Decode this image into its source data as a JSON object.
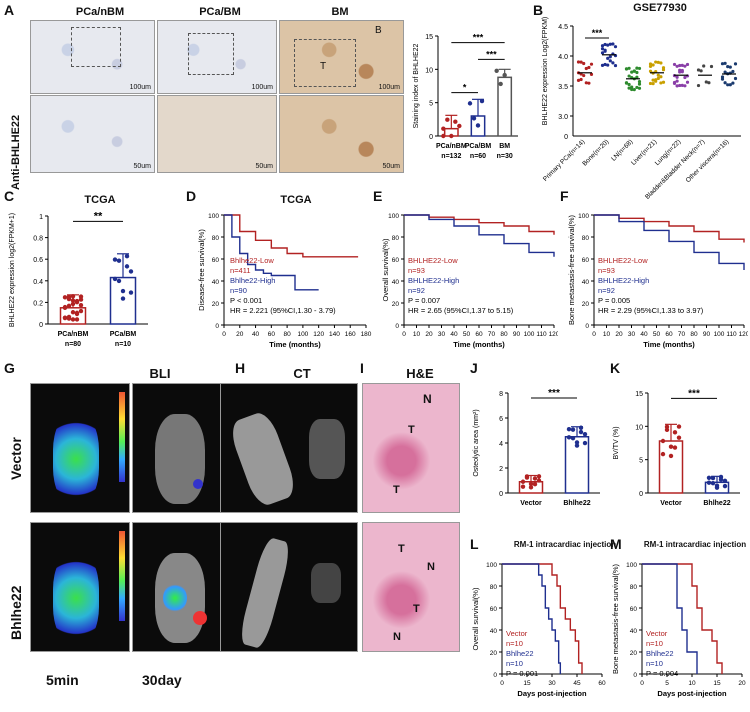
{
  "panels": {
    "A": {
      "label": "A",
      "side_label": "Anti-BHLHE22",
      "titles": [
        "PCa/nBM",
        "PCa/BM",
        "BM"
      ],
      "scale": [
        "100um",
        "100um",
        "100um"
      ],
      "scale_bottom": [
        "50um",
        "50um",
        "50um"
      ],
      "marks": {
        "T": "T",
        "B": "B"
      }
    },
    "B": {
      "label": "B",
      "title": "GSE77930"
    },
    "C": {
      "label": "C",
      "title": "TCGA"
    },
    "D": {
      "label": "D",
      "title": "TCGA",
      "legend_low": "Bhlhe22-Low",
      "n_low": "n=411",
      "legend_high": "Bhlhe22-High",
      "n_high": "n=90",
      "p": "P < 0.001",
      "hr": "HR = 2.221 (95%CI,1.30 - 3.79)"
    },
    "E": {
      "label": "E",
      "legend_low": "BHLHE22-Low",
      "n_low": "n=93",
      "legend_high": "BHLHE22-High",
      "n_high": "n=92",
      "p": "P = 0.007",
      "hr": "HR = 2.65 (95%CI,1.37 to 5.15)"
    },
    "F": {
      "label": "F",
      "legend_low": "BHLHE22-Low",
      "n_low": "n=93",
      "legend_high": "BHLHE22-High",
      "n_high": "n=92",
      "p": "P = 0.005",
      "hr": "HR = 2.29 (95%CI,1.33 to 3.97)"
    },
    "G": {
      "label": "G",
      "title": "BLI",
      "row1": "Vector",
      "row2": "Bhlhe22",
      "t1": "5min",
      "t2": "30day"
    },
    "H": {
      "label": "H",
      "title": "CT"
    },
    "I": {
      "label": "I",
      "title": "H&E",
      "n": "N",
      "t": "T"
    },
    "J": {
      "label": "J"
    },
    "K": {
      "label": "K"
    },
    "L": {
      "label": "L",
      "title": "RM-1 intracardiac injection",
      "v": "Vector",
      "vn": "n=10",
      "b": "Bhlhe22",
      "bn": "n=10",
      "p": "P = 0.001"
    },
    "M": {
      "label": "M",
      "title": "RM-1 intracardiac injection",
      "v": "Vector",
      "vn": "n=10",
      "b": "Bhlhe22",
      "bn": "n=10",
      "p": "P = 0.004"
    }
  },
  "colors": {
    "red": "#b22222",
    "blue": "#1f2f8f",
    "green": "#2e8b2e",
    "pink": "#d94f8a"
  },
  "chart_data": [
    {
      "id": "A-bar",
      "type": "bar",
      "ylabel": "Staining index of BHLHE22",
      "categories": [
        "PCa/nBM",
        "PCa/BM",
        "BM"
      ],
      "counts": [
        "n=132",
        "n=60",
        "n=30"
      ],
      "values": [
        1.1,
        3.0,
        8.8
      ],
      "errors": [
        2.0,
        2.5,
        1.2
      ],
      "ylim": [
        0,
        15
      ],
      "yticks": [
        0,
        5,
        10,
        15
      ],
      "significance": [
        "*",
        "***",
        "***"
      ]
    },
    {
      "id": "B-scatter",
      "type": "scatter",
      "ylabel": "BHLHE22 expression Log2(FPKM)",
      "categories": [
        "Primary PCa(n=14)",
        "Bone(n=20)",
        "LN(n=68)",
        "Liver(n=21)",
        "Lung(n=22)",
        "Bladder&Bladder Neck(n=7)",
        "Other viscera(n=16)"
      ],
      "means": [
        3.72,
        4.02,
        3.62,
        3.72,
        3.68,
        3.68,
        3.7
      ],
      "yticks": [
        0,
        3.0,
        3.5,
        4.0,
        4.5
      ],
      "significance": "***"
    },
    {
      "id": "C-bar",
      "type": "bar",
      "ylabel": "BHLHE22 expression log2(FPKM+1)",
      "categories": [
        "PCa/nBM",
        "PCa/BM"
      ],
      "counts": [
        "n=80",
        "n=10"
      ],
      "values": [
        0.15,
        0.43
      ],
      "errors": [
        0.12,
        0.22
      ],
      "ylim": [
        0,
        1.0
      ],
      "yticks": [
        0.0,
        0.2,
        0.4,
        0.6,
        0.8,
        1.0
      ],
      "significance": "**"
    },
    {
      "id": "D-km",
      "type": "line",
      "ylabel": "Disease-free survival(%)",
      "xlabel": "Time (months)",
      "xticks": [
        0,
        20,
        40,
        60,
        80,
        100,
        120,
        140,
        160,
        180
      ],
      "yticks": [
        0,
        20,
        40,
        60,
        80,
        100
      ],
      "series": [
        {
          "name": "Bhlhe22-Low",
          "x": [
            0,
            20,
            40,
            60,
            80,
            100,
            120,
            140,
            160,
            170
          ],
          "y": [
            100,
            85,
            77,
            70,
            65,
            62,
            62,
            62,
            62,
            62
          ]
        },
        {
          "name": "Bhlhe22-High",
          "x": [
            0,
            10,
            20,
            30,
            40,
            50,
            60,
            70,
            80,
            90,
            120
          ],
          "y": [
            100,
            80,
            65,
            55,
            50,
            47,
            45,
            45,
            45,
            32,
            32
          ]
        }
      ]
    },
    {
      "id": "E-km",
      "type": "line",
      "ylabel": "Overall survival(%)",
      "xlabel": "Time (months)",
      "xticks": [
        0,
        10,
        20,
        30,
        40,
        50,
        60,
        70,
        80,
        90,
        100,
        110,
        120
      ],
      "yticks": [
        0,
        20,
        40,
        60,
        80,
        100
      ],
      "series": [
        {
          "name": "BHLHE22-Low",
          "x": [
            0,
            20,
            40,
            60,
            80,
            100,
            120
          ],
          "y": [
            100,
            98,
            96,
            93,
            90,
            85,
            82
          ]
        },
        {
          "name": "BHLHE22-High",
          "x": [
            0,
            20,
            40,
            60,
            80,
            100,
            120
          ],
          "y": [
            100,
            96,
            90,
            82,
            74,
            66,
            62
          ]
        }
      ]
    },
    {
      "id": "F-km",
      "type": "line",
      "ylabel": "Bone metastasis-free survival(%)",
      "xlabel": "Time (months)",
      "xticks": [
        0,
        10,
        20,
        30,
        40,
        50,
        60,
        70,
        80,
        90,
        100,
        110,
        120
      ],
      "yticks": [
        0,
        20,
        40,
        60,
        80,
        100
      ],
      "series": [
        {
          "name": "BHLHE22-Low",
          "x": [
            0,
            20,
            40,
            60,
            80,
            100,
            120
          ],
          "y": [
            100,
            97,
            94,
            90,
            85,
            78,
            75
          ]
        },
        {
          "name": "BHLHE22-High",
          "x": [
            0,
            20,
            40,
            60,
            80,
            100,
            120
          ],
          "y": [
            100,
            94,
            86,
            76,
            66,
            56,
            50
          ]
        }
      ]
    },
    {
      "id": "J-bar",
      "type": "bar",
      "ylabel": "Osteolytic area (mm²)",
      "categories": [
        "Vector",
        "Bhlhe22"
      ],
      "values": [
        0.9,
        4.5
      ],
      "errors": [
        0.5,
        0.8
      ],
      "ylim": [
        0,
        8
      ],
      "yticks": [
        0,
        2,
        4,
        6,
        8
      ],
      "significance": "***"
    },
    {
      "id": "K-bar",
      "type": "bar",
      "ylabel": "BV/TV (%)",
      "categories": [
        "Vector",
        "Bhlhe22"
      ],
      "values": [
        7.8,
        1.6
      ],
      "errors": [
        2.5,
        0.9
      ],
      "ylim": [
        0,
        15
      ],
      "yticks": [
        0,
        5,
        10,
        15
      ],
      "significance": "***"
    },
    {
      "id": "L-km",
      "type": "line",
      "ylabel": "Overall survival(%)",
      "xlabel": "Days post-injection",
      "xticks": [
        0,
        15,
        30,
        45,
        60
      ],
      "yticks": [
        0,
        20,
        40,
        60,
        80,
        100
      ],
      "series": [
        {
          "name": "Vector",
          "x": [
            0,
            28,
            30,
            33,
            35,
            38,
            41,
            44,
            46,
            48
          ],
          "y": [
            100,
            100,
            90,
            80,
            60,
            50,
            40,
            30,
            10,
            0
          ]
        },
        {
          "name": "Bhlhe22",
          "x": [
            0,
            20,
            22,
            24,
            26,
            28,
            30,
            32,
            34,
            35
          ],
          "y": [
            100,
            100,
            90,
            80,
            60,
            50,
            40,
            30,
            10,
            0
          ]
        }
      ]
    },
    {
      "id": "M-km",
      "type": "line",
      "ylabel": "Bone metastasis-free survival(%)",
      "xlabel": "Days post-injection",
      "xticks": [
        0,
        5,
        10,
        15,
        20
      ],
      "yticks": [
        0,
        20,
        40,
        60,
        80,
        100
      ],
      "series": [
        {
          "name": "Vector",
          "x": [
            0,
            9,
            10,
            11,
            12,
            13,
            14,
            15,
            16
          ],
          "y": [
            100,
            100,
            80,
            60,
            40,
            40,
            30,
            10,
            0
          ]
        },
        {
          "name": "Bhlhe22",
          "x": [
            0,
            6,
            7,
            8,
            9,
            10,
            11
          ],
          "y": [
            100,
            100,
            60,
            40,
            20,
            20,
            0
          ]
        }
      ]
    }
  ]
}
